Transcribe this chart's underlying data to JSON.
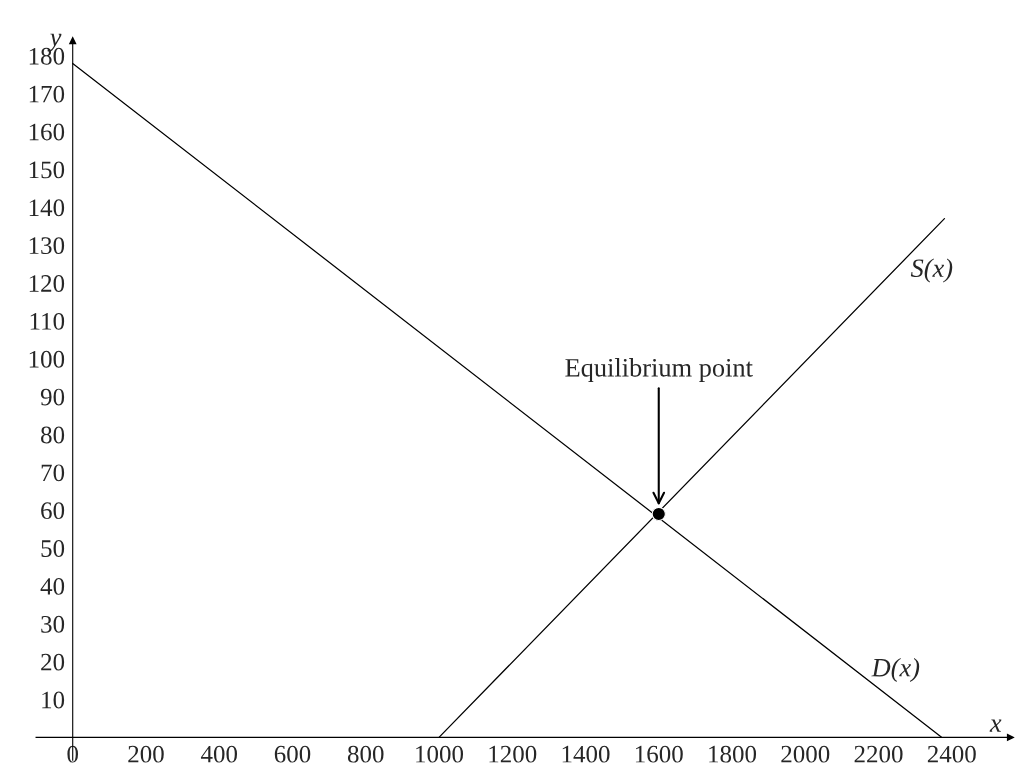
{
  "chart_data": {
    "type": "line",
    "xlabel": "x",
    "ylabel": "y",
    "series": [
      {
        "name": "S(x)",
        "color": "#000000",
        "x": [
          1000,
          2380
        ],
        "values": [
          0,
          137
        ]
      },
      {
        "name": "D(x)",
        "color": "#000000",
        "x": [
          0,
          2373
        ],
        "values": [
          178,
          0
        ]
      },
      {
        "type": "scatter",
        "color": "#000000",
        "x": [
          1600
        ],
        "values": [
          59
        ],
        "marker": "circle"
      }
    ],
    "annotations": [
      "Equilibrium point"
    ],
    "xlim": [
      -100,
      2560
    ],
    "ylim": [
      -6,
      184
    ],
    "xticks": [
      0,
      200,
      400,
      600,
      800,
      1000,
      1200,
      1400,
      1600,
      1800,
      2000,
      2200,
      2400
    ],
    "yticks": [
      10,
      20,
      30,
      40,
      50,
      60,
      70,
      80,
      90,
      100,
      110,
      120,
      130,
      140,
      150,
      160,
      170,
      180
    ],
    "grid": false,
    "legend": false,
    "marker": "none",
    "line_style": "solid"
  }
}
